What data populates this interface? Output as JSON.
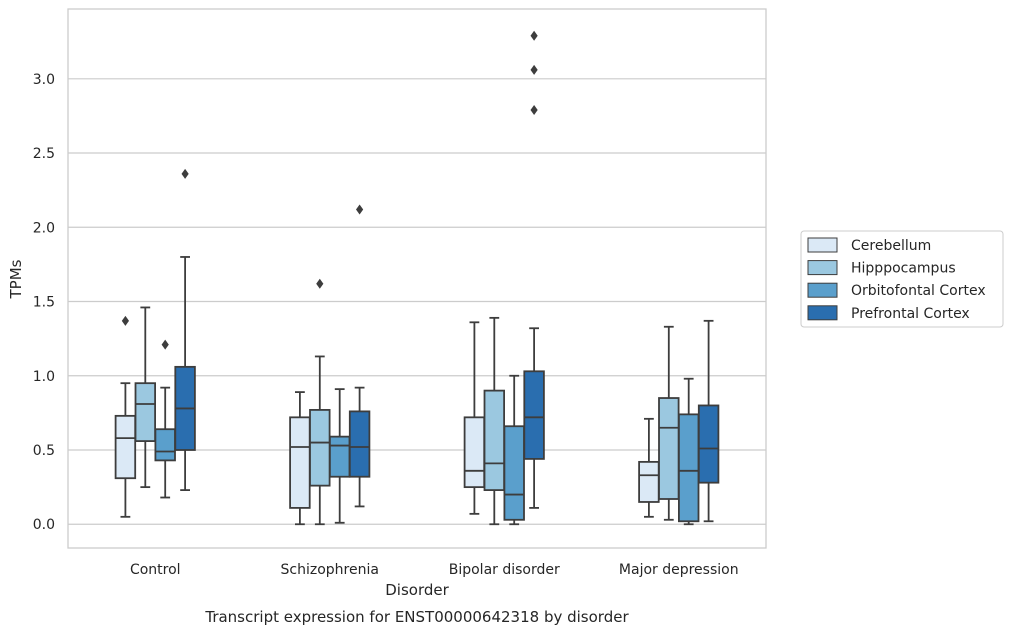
{
  "chart_data": {
    "type": "box",
    "title": "Transcript expression for ENST00000642318 by disorder",
    "xlabel": "Disorder",
    "ylabel": "TPMs",
    "categories": [
      "Control",
      "Schizophrenia",
      "Bipolar disorder",
      "Major depression"
    ],
    "ylim": [
      -0.16,
      3.47
    ],
    "yticks": [
      0.0,
      0.5,
      1.0,
      1.5,
      2.0,
      2.5,
      3.0
    ],
    "ytick_labels": [
      "0.0",
      "0.5",
      "1.0",
      "1.5",
      "2.0",
      "2.5",
      "3.0"
    ],
    "grid": "horizontal",
    "legend_position": "right",
    "series": [
      {
        "name": "Cerebellum",
        "color": "#dbe9f6",
        "boxes": [
          {
            "min": 0.05,
            "q1": 0.31,
            "median": 0.58,
            "q3": 0.73,
            "max": 0.95,
            "outliers": [
              1.37
            ]
          },
          {
            "min": 0.0,
            "q1": 0.11,
            "median": 0.52,
            "q3": 0.72,
            "max": 0.89,
            "outliers": []
          },
          {
            "min": 0.07,
            "q1": 0.25,
            "median": 0.36,
            "q3": 0.72,
            "max": 1.36,
            "outliers": []
          },
          {
            "min": 0.05,
            "q1": 0.15,
            "median": 0.33,
            "q3": 0.42,
            "max": 0.71,
            "outliers": []
          }
        ]
      },
      {
        "name": "Hipppocampus",
        "color": "#9bc8e0",
        "boxes": [
          {
            "min": 0.25,
            "q1": 0.56,
            "median": 0.81,
            "q3": 0.95,
            "max": 1.46,
            "outliers": []
          },
          {
            "min": 0.0,
            "q1": 0.26,
            "median": 0.55,
            "q3": 0.77,
            "max": 1.13,
            "outliers": [
              1.62
            ]
          },
          {
            "min": 0.0,
            "q1": 0.23,
            "median": 0.41,
            "q3": 0.9,
            "max": 1.39,
            "outliers": []
          },
          {
            "min": 0.03,
            "q1": 0.17,
            "median": 0.65,
            "q3": 0.85,
            "max": 1.33,
            "outliers": []
          }
        ]
      },
      {
        "name": "Orbitofontal Cortex",
        "color": "#5a9fcc",
        "boxes": [
          {
            "min": 0.18,
            "q1": 0.43,
            "median": 0.49,
            "q3": 0.64,
            "max": 0.92,
            "outliers": [
              1.21
            ]
          },
          {
            "min": 0.01,
            "q1": 0.32,
            "median": 0.53,
            "q3": 0.59,
            "max": 0.91,
            "outliers": []
          },
          {
            "min": 0.0,
            "q1": 0.03,
            "median": 0.2,
            "q3": 0.66,
            "max": 1.0,
            "outliers": []
          },
          {
            "min": 0.0,
            "q1": 0.02,
            "median": 0.36,
            "q3": 0.74,
            "max": 0.98,
            "outliers": []
          }
        ]
      },
      {
        "name": "Prefrontal Cortex",
        "color": "#2a6eaf",
        "boxes": [
          {
            "min": 0.23,
            "q1": 0.5,
            "median": 0.78,
            "q3": 1.06,
            "max": 1.8,
            "outliers": [
              2.36
            ]
          },
          {
            "min": 0.12,
            "q1": 0.32,
            "median": 0.52,
            "q3": 0.76,
            "max": 0.92,
            "outliers": [
              2.12
            ]
          },
          {
            "min": 0.11,
            "q1": 0.44,
            "median": 0.72,
            "q3": 1.03,
            "max": 1.32,
            "outliers": [
              2.79,
              3.06,
              3.29
            ]
          },
          {
            "min": 0.02,
            "q1": 0.28,
            "median": 0.51,
            "q3": 0.8,
            "max": 1.37,
            "outliers": []
          }
        ]
      }
    ]
  }
}
